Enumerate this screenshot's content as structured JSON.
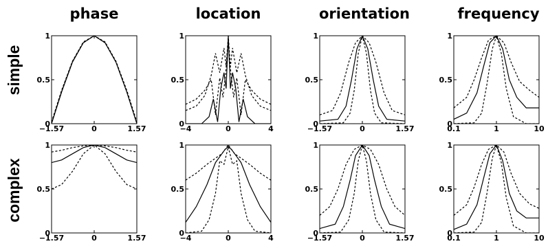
{
  "column_titles": [
    "phase",
    "location",
    "orientation",
    "frequency"
  ],
  "row_titles": [
    "simple",
    "complex"
  ],
  "chart_data": [
    {
      "type": "line",
      "row": "simple",
      "column": "phase",
      "xlim": [
        -1.57,
        1.57
      ],
      "ylim": [
        0,
        1
      ],
      "xscale": "linear",
      "xticks": [
        -1.57,
        0,
        1.57
      ],
      "xticklabels": [
        "−1.57",
        "0",
        "1.57"
      ],
      "yticks": [
        0,
        0.5,
        1
      ],
      "yticklabels": [
        "0",
        "0.5",
        "1"
      ],
      "series": [
        {
          "style": "solid",
          "x": [
            -1.57,
            -1.2,
            -0.8,
            -0.4,
            0,
            0.4,
            0.8,
            1.2,
            1.57
          ],
          "y": [
            0,
            0.36,
            0.7,
            0.92,
            1,
            0.92,
            0.7,
            0.36,
            0
          ]
        },
        {
          "style": "dashed",
          "x": [
            -1.57,
            -1.2,
            -0.8,
            -0.4,
            0,
            0.4,
            0.8,
            1.2,
            1.57
          ],
          "y": [
            0.01,
            0.37,
            0.71,
            0.92,
            1,
            0.92,
            0.71,
            0.37,
            0.01
          ]
        },
        {
          "style": "dashed",
          "x": [
            -1.57,
            -1.2,
            -0.8,
            -0.4,
            0,
            0.4,
            0.8,
            1.2,
            1.57
          ],
          "y": [
            0.02,
            0.38,
            0.71,
            0.93,
            1,
            0.93,
            0.71,
            0.38,
            0.02
          ]
        }
      ]
    },
    {
      "type": "line",
      "row": "simple",
      "column": "location",
      "xlim": [
        -4,
        4
      ],
      "ylim": [
        0,
        1
      ],
      "xscale": "linear",
      "xticks": [
        -4,
        0,
        4
      ],
      "xticklabels": [
        "−4",
        "0",
        "4"
      ],
      "yticks": [
        0,
        0.5,
        1
      ],
      "yticklabels": [
        "0",
        "0.5",
        "1"
      ],
      "series": [
        {
          "style": "solid",
          "x": [
            -4,
            -2.5,
            -1.8,
            -1.4,
            -1.0,
            -0.7,
            -0.4,
            -0.2,
            0,
            0.2,
            0.4,
            0.7,
            1.0,
            1.4,
            1.8,
            2.5,
            4
          ],
          "y": [
            0,
            0,
            0.08,
            0.28,
            0.02,
            0.4,
            0.58,
            0.4,
            1,
            0.4,
            0.58,
            0.4,
            0.02,
            0.28,
            0.08,
            0,
            0
          ]
        },
        {
          "style": "dashed",
          "x": [
            -4,
            -3,
            -2.2,
            -1.6,
            -1.2,
            -0.8,
            -0.4,
            -0.2,
            0,
            0.2,
            0.4,
            0.8,
            1.2,
            1.6,
            2.2,
            3,
            4
          ],
          "y": [
            0.15,
            0.2,
            0.32,
            0.55,
            0.8,
            0.58,
            0.86,
            0.65,
            1,
            0.65,
            0.86,
            0.58,
            0.8,
            0.55,
            0.32,
            0.2,
            0.15
          ]
        },
        {
          "style": "dashed",
          "x": [
            -4,
            -3,
            -2.2,
            -1.6,
            -1.2,
            -0.8,
            -0.5,
            -0.25,
            0,
            0.25,
            0.5,
            0.8,
            1.2,
            1.6,
            2.2,
            3,
            4
          ],
          "y": [
            0.22,
            0.28,
            0.38,
            0.5,
            0.1,
            0.52,
            0.3,
            0.56,
            0.95,
            0.56,
            0.3,
            0.52,
            0.1,
            0.5,
            0.38,
            0.28,
            0.22
          ]
        }
      ]
    },
    {
      "type": "line",
      "row": "simple",
      "column": "orientation",
      "xlim": [
        -1.57,
        1.57
      ],
      "ylim": [
        0,
        1
      ],
      "xscale": "linear",
      "xticks": [
        -1.57,
        0,
        1.57
      ],
      "xticklabels": [
        "−1.57",
        "0",
        "1.57"
      ],
      "yticks": [
        0,
        0.5,
        1
      ],
      "yticklabels": [
        "0",
        "0.5",
        "1"
      ],
      "series": [
        {
          "style": "solid",
          "x": [
            -1.57,
            -0.9,
            -0.6,
            -0.4,
            -0.2,
            0,
            0.2,
            0.4,
            0.6,
            0.9,
            1.57
          ],
          "y": [
            0.03,
            0.05,
            0.2,
            0.5,
            0.85,
            1,
            0.85,
            0.5,
            0.2,
            0.05,
            0.03
          ]
        },
        {
          "style": "dashed",
          "x": [
            -1.57,
            -1.1,
            -0.8,
            -0.5,
            -0.25,
            0,
            0.25,
            0.5,
            0.8,
            1.1,
            1.57
          ],
          "y": [
            0.1,
            0.15,
            0.35,
            0.7,
            0.92,
            1,
            0.92,
            0.7,
            0.35,
            0.15,
            0.1
          ]
        },
        {
          "style": "dashed",
          "x": [
            -1.57,
            -0.7,
            -0.45,
            -0.3,
            -0.15,
            0,
            0.15,
            0.3,
            0.45,
            0.7,
            1.57
          ],
          "y": [
            0,
            0.01,
            0.12,
            0.38,
            0.8,
            1,
            0.8,
            0.38,
            0.12,
            0.01,
            0
          ]
        }
      ]
    },
    {
      "type": "line",
      "row": "simple",
      "column": "frequency",
      "xlim": [
        0.1,
        10
      ],
      "ylim": [
        0,
        1
      ],
      "xscale": "log",
      "xticks": [
        0.1,
        1,
        10
      ],
      "xticklabels": [
        "0.1",
        "1",
        "10"
      ],
      "yticks": [
        0,
        0.5,
        1
      ],
      "yticklabels": [
        "0",
        "0.5",
        "1"
      ],
      "series": [
        {
          "style": "solid",
          "x": [
            0.1,
            0.2,
            0.35,
            0.5,
            0.7,
            1,
            1.4,
            2,
            3,
            5,
            10
          ],
          "y": [
            0.05,
            0.12,
            0.35,
            0.65,
            0.92,
            1,
            0.85,
            0.5,
            0.3,
            0.18,
            0.18
          ]
        },
        {
          "style": "dashed",
          "x": [
            0.1,
            0.2,
            0.3,
            0.45,
            0.65,
            1,
            1.5,
            2.2,
            3.5,
            6,
            10
          ],
          "y": [
            0.18,
            0.3,
            0.5,
            0.75,
            0.95,
            1,
            0.92,
            0.7,
            0.48,
            0.38,
            0.3
          ]
        },
        {
          "style": "dashed",
          "x": [
            0.1,
            0.3,
            0.45,
            0.6,
            0.8,
            1,
            1.3,
            1.7,
            2.5,
            5,
            10
          ],
          "y": [
            0,
            0.01,
            0.12,
            0.45,
            0.85,
            1,
            0.8,
            0.4,
            0.08,
            0,
            0
          ]
        }
      ]
    },
    {
      "type": "line",
      "row": "complex",
      "column": "phase",
      "xlim": [
        -1.57,
        1.57
      ],
      "ylim": [
        0,
        1
      ],
      "xscale": "linear",
      "xticks": [
        -1.57,
        0,
        1.57
      ],
      "xticklabels": [
        "−1.57",
        "0",
        "1.57"
      ],
      "yticks": [
        0,
        0.5,
        1
      ],
      "yticklabels": [
        "0",
        "0.5",
        "1"
      ],
      "series": [
        {
          "style": "solid",
          "x": [
            -1.57,
            -1.2,
            -0.8,
            -0.4,
            0,
            0.4,
            0.8,
            1.2,
            1.57
          ],
          "y": [
            0.8,
            0.83,
            0.9,
            0.97,
            1,
            0.97,
            0.9,
            0.83,
            0.8
          ]
        },
        {
          "style": "dashed",
          "x": [
            -1.57,
            -1.2,
            -0.8,
            -0.4,
            0,
            0.4,
            0.8,
            1.2,
            1.57
          ],
          "y": [
            0.92,
            0.94,
            0.97,
            0.99,
            1,
            0.99,
            0.97,
            0.94,
            0.92
          ]
        },
        {
          "style": "dashed",
          "x": [
            -1.57,
            -1.2,
            -0.8,
            -0.4,
            0,
            0.4,
            0.8,
            1.2,
            1.57
          ],
          "y": [
            0.5,
            0.55,
            0.7,
            0.9,
            1,
            0.9,
            0.7,
            0.55,
            0.5
          ]
        }
      ]
    },
    {
      "type": "line",
      "row": "complex",
      "column": "location",
      "xlim": [
        -4,
        4
      ],
      "ylim": [
        0,
        1
      ],
      "xscale": "linear",
      "xticks": [
        -4,
        0,
        4
      ],
      "xticklabels": [
        "−4",
        "0",
        "4"
      ],
      "yticks": [
        0,
        0.5,
        1
      ],
      "yticklabels": [
        "0",
        "0.5",
        "1"
      ],
      "series": [
        {
          "style": "solid",
          "x": [
            -4,
            -3,
            -2,
            -1.2,
            -0.6,
            -0.3,
            0,
            0.3,
            0.6,
            1.2,
            2,
            3,
            4
          ],
          "y": [
            0.12,
            0.3,
            0.55,
            0.8,
            0.9,
            0.95,
            0.98,
            0.95,
            0.9,
            0.8,
            0.55,
            0.3,
            0.12
          ]
        },
        {
          "style": "dashed",
          "x": [
            -4,
            -3,
            -2,
            -1.2,
            -0.6,
            0,
            0.6,
            1.2,
            2,
            3,
            4
          ],
          "y": [
            0.6,
            0.68,
            0.78,
            0.85,
            0.9,
            1,
            0.9,
            0.85,
            0.78,
            0.68,
            0.6
          ]
        },
        {
          "style": "dashed",
          "x": [
            -4,
            -2.5,
            -1.8,
            -1.2,
            -0.8,
            -0.4,
            0,
            0.4,
            0.8,
            1.2,
            1.8,
            2.5,
            4
          ],
          "y": [
            0,
            0.02,
            0.15,
            0.45,
            0.82,
            0.78,
            0.98,
            0.78,
            0.82,
            0.45,
            0.15,
            0.02,
            0
          ]
        }
      ]
    },
    {
      "type": "line",
      "row": "complex",
      "column": "orientation",
      "xlim": [
        -1.57,
        1.57
      ],
      "ylim": [
        0,
        1
      ],
      "xscale": "linear",
      "xticks": [
        -1.57,
        0,
        1.57
      ],
      "xticklabels": [
        "−1.57",
        "0",
        "1.57"
      ],
      "yticks": [
        0,
        0.5,
        1
      ],
      "yticklabels": [
        "0",
        "0.5",
        "1"
      ],
      "series": [
        {
          "style": "solid",
          "x": [
            -1.57,
            -1.0,
            -0.7,
            -0.45,
            -0.25,
            0,
            0.25,
            0.45,
            0.7,
            1.0,
            1.57
          ],
          "y": [
            0.05,
            0.1,
            0.3,
            0.6,
            0.88,
            1,
            0.88,
            0.6,
            0.3,
            0.1,
            0.05
          ]
        },
        {
          "style": "dashed",
          "x": [
            -1.57,
            -1.2,
            -0.9,
            -0.6,
            -0.3,
            0,
            0.3,
            0.6,
            0.9,
            1.2,
            1.57
          ],
          "y": [
            0.2,
            0.3,
            0.5,
            0.78,
            0.95,
            1,
            0.95,
            0.78,
            0.5,
            0.3,
            0.2
          ]
        },
        {
          "style": "dashed",
          "x": [
            -1.57,
            -0.8,
            -0.5,
            -0.3,
            -0.15,
            0,
            0.15,
            0.3,
            0.5,
            0.8,
            1.57
          ],
          "y": [
            0,
            0.01,
            0.15,
            0.45,
            0.82,
            1,
            0.82,
            0.45,
            0.15,
            0.01,
            0
          ]
        }
      ]
    },
    {
      "type": "line",
      "row": "complex",
      "column": "frequency",
      "xlim": [
        0.1,
        10
      ],
      "ylim": [
        0,
        1
      ],
      "xscale": "log",
      "xticks": [
        0.1,
        1,
        10
      ],
      "xticklabels": [
        "0.1",
        "1",
        "10"
      ],
      "yticks": [
        0,
        0.5,
        1
      ],
      "yticklabels": [
        "0",
        "0.5",
        "1"
      ],
      "series": [
        {
          "style": "solid",
          "x": [
            0.1,
            0.2,
            0.35,
            0.5,
            0.7,
            1,
            1.4,
            2,
            3,
            5,
            10
          ],
          "y": [
            0.04,
            0.1,
            0.32,
            0.62,
            0.9,
            1,
            0.82,
            0.45,
            0.25,
            0.17,
            0.17
          ]
        },
        {
          "style": "dashed",
          "x": [
            0.1,
            0.2,
            0.3,
            0.45,
            0.65,
            1,
            1.5,
            2.2,
            3.5,
            6,
            10
          ],
          "y": [
            0.2,
            0.32,
            0.52,
            0.78,
            0.95,
            1,
            0.92,
            0.68,
            0.45,
            0.33,
            0.28
          ]
        },
        {
          "style": "dashed",
          "x": [
            0.1,
            0.3,
            0.45,
            0.6,
            0.8,
            1,
            1.3,
            1.7,
            2.5,
            5,
            10
          ],
          "y": [
            0,
            0.01,
            0.12,
            0.45,
            0.85,
            1,
            0.8,
            0.4,
            0.08,
            0,
            0
          ]
        }
      ]
    }
  ]
}
